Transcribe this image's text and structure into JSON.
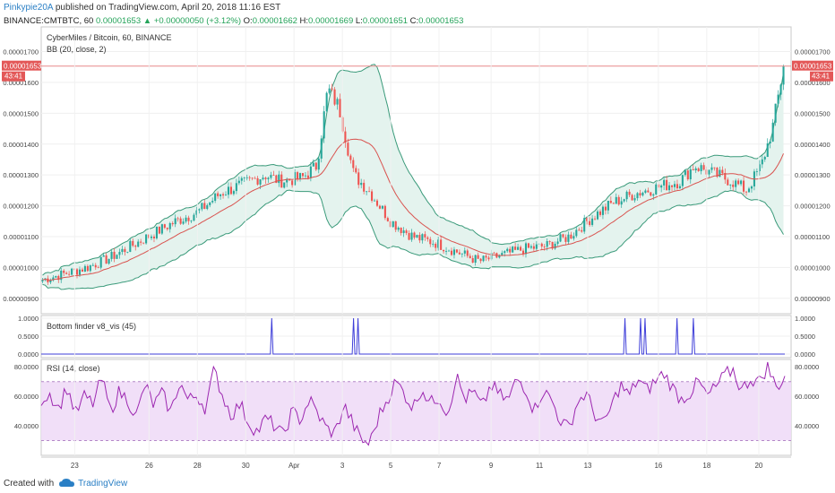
{
  "header": {
    "author": "Pinkypie20A",
    "published_text": "published on TradingView.com, April 20, 2018 11:16 EST",
    "symbol_line": "BINANCE:CMTBTC, 60",
    "last_price": "0.00001653",
    "change": "+0.00000050 (+3.12%)",
    "open_label": "O:",
    "open": "0.00001662",
    "high_label": "H:",
    "high": "0.00001669",
    "low_label": "L:",
    "low": "0.00001651",
    "close_label": "C:",
    "close": "0.00001653"
  },
  "main_pane": {
    "title": "CyberMiles / Bitcoin, 60, BINANCE",
    "indicator": "BB (20, close, 2)",
    "price_badge": "0.00001653",
    "countdown_badge": "43:41",
    "ticks": [
      "0.00000900",
      "0.00001000",
      "0.00001100",
      "0.00001200",
      "0.00001300",
      "0.00001400",
      "0.00001500",
      "0.00001600",
      "0.00001700"
    ]
  },
  "finder_pane": {
    "title": "Bottom finder v8_vis (45)",
    "ticks": [
      "0.0000",
      "0.5000",
      "1.0000"
    ]
  },
  "rsi_pane": {
    "title": "RSI (14, close)",
    "left_ticks": [
      "40.0000",
      "60.0000",
      "80.0000"
    ],
    "right_ticks": [
      "40.0000",
      "60.0000",
      "80.0000"
    ]
  },
  "x_axis": [
    "23",
    "26",
    "28",
    "30",
    "Apr",
    "3",
    "5",
    "7",
    "9",
    "11",
    "13",
    "16",
    "18",
    "20"
  ],
  "footer": {
    "created_with": "Created with",
    "brand": "TradingView"
  },
  "colors": {
    "up": "#26a69a",
    "down": "#ef5350",
    "band": "#3a9a7a",
    "band_fill": "#e4f3ee",
    "basis": "#d9534f",
    "rsi": "#9c27b0",
    "rsi_fill": "#efdcf7",
    "finder": "#3f3fd9"
  },
  "chart_data": [
    {
      "type": "candlestick",
      "title": "CyberMiles / Bitcoin, 60, BINANCE",
      "indicator": "BB (20, close, 2)",
      "x_labels": [
        "23",
        "26",
        "28",
        "30",
        "Apr",
        "3",
        "5",
        "7",
        "9",
        "11",
        "13",
        "16",
        "18",
        "20"
      ],
      "ylim": [
        8.5e-06,
        1.78e-05
      ],
      "close_path": [
        [
          0,
          9.6e-06
        ],
        [
          0.03,
          9.8e-06
        ],
        [
          0.06,
          1e-05
        ],
        [
          0.09,
          1.03e-05
        ],
        [
          0.12,
          1.07e-05
        ],
        [
          0.15,
          1.11e-05
        ],
        [
          0.18,
          1.15e-05
        ],
        [
          0.21,
          1.18e-05
        ],
        [
          0.24,
          1.24e-05
        ],
        [
          0.27,
          1.27e-05
        ],
        [
          0.3,
          1.3e-05
        ],
        [
          0.32,
          1.28e-05
        ],
        [
          0.35,
          1.29e-05
        ],
        [
          0.37,
          1.33e-05
        ],
        [
          0.385,
          1.58e-05
        ],
        [
          0.4,
          1.52e-05
        ],
        [
          0.42,
          1.3e-05
        ],
        [
          0.44,
          1.25e-05
        ],
        [
          0.47,
          1.15e-05
        ],
        [
          0.5,
          1.1e-05
        ],
        [
          0.53,
          1.08e-05
        ],
        [
          0.56,
          1.05e-05
        ],
        [
          0.59,
          1.02e-05
        ],
        [
          0.62,
          1.04e-05
        ],
        [
          0.65,
          1.06e-05
        ],
        [
          0.68,
          1.07e-05
        ],
        [
          0.71,
          1.1e-05
        ],
        [
          0.74,
          1.16e-05
        ],
        [
          0.77,
          1.21e-05
        ],
        [
          0.8,
          1.24e-05
        ],
        [
          0.83,
          1.26e-05
        ],
        [
          0.86,
          1.28e-05
        ],
        [
          0.88,
          1.33e-05
        ],
        [
          0.91,
          1.3e-05
        ],
        [
          0.93,
          1.28e-05
        ],
        [
          0.95,
          1.25e-05
        ],
        [
          0.97,
          1.33e-05
        ],
        [
          0.985,
          1.45e-05
        ],
        [
          1.0,
          1.65e-05
        ]
      ],
      "last_price": 1.653e-05
    },
    {
      "type": "line",
      "title": "Bottom finder v8_vis (45)",
      "ylim": [
        0,
        1
      ],
      "spikes_x_fraction": [
        0.31,
        0.42,
        0.426,
        0.785,
        0.806,
        0.812,
        0.855,
        0.877
      ]
    },
    {
      "type": "line",
      "title": "RSI (14, close)",
      "ylim": [
        20,
        85
      ],
      "band": [
        30,
        70
      ],
      "values": [
        58,
        62,
        52,
        66,
        48,
        60,
        55,
        72,
        50,
        63,
        58,
        46,
        68,
        54,
        62,
        49,
        70,
        57,
        61,
        52,
        78,
        60,
        47,
        55,
        42,
        36,
        45,
        40,
        33,
        50,
        44,
        58,
        48,
        38,
        35,
        54,
        42,
        30,
        28,
        46,
        58,
        70,
        62,
        52,
        66,
        55,
        60,
        48,
        74,
        58,
        63,
        52,
        68,
        61,
        57,
        72,
        66,
        50,
        64,
        58,
        44,
        38,
        56,
        62,
        48,
        40,
        54,
        68,
        60,
        72,
        64,
        70,
        76,
        66,
        58,
        62,
        70,
        60,
        66,
        74,
        78,
        64,
        72,
        70,
        80,
        66,
        73
      ]
    }
  ]
}
